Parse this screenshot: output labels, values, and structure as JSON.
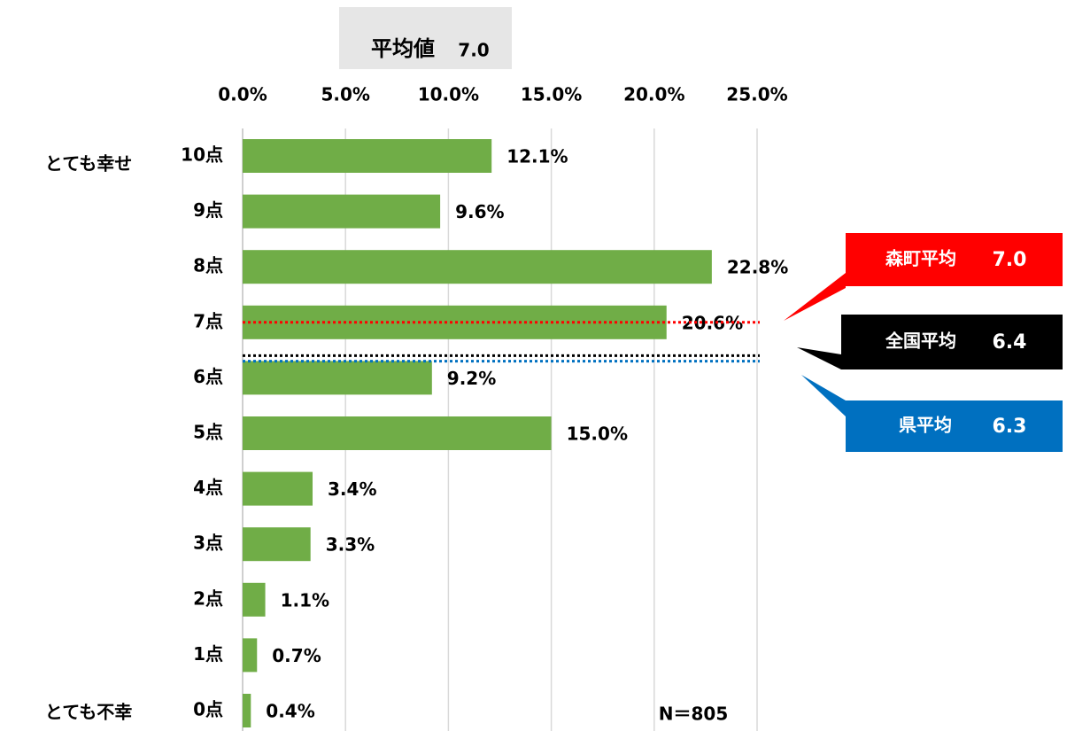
{
  "chart_data": {
    "type": "bar",
    "orientation": "horizontal",
    "title": "平均値",
    "title_value": 7.0,
    "title_value_label": "7.0",
    "categories": [
      "10点",
      "9点",
      "8点",
      "7点",
      "6点",
      "5点",
      "4点",
      "3点",
      "2点",
      "1点",
      "0点"
    ],
    "values": [
      12.1,
      9.6,
      22.8,
      20.6,
      9.2,
      15.0,
      3.4,
      3.3,
      1.1,
      0.7,
      0.4
    ],
    "value_labels": [
      "12.1%",
      "9.6%",
      "22.8%",
      "20.6%",
      "9.2%",
      "15.0%",
      "3.4%",
      "3.3%",
      "1.1%",
      "0.7%",
      "0.4%"
    ],
    "color": "#70ad47",
    "xlim": [
      0,
      25
    ],
    "xticks": [
      {
        "value": 0,
        "label": "0.0%"
      },
      {
        "value": 5,
        "label": "5.0%"
      },
      {
        "value": 10,
        "label": "10.0%"
      },
      {
        "value": 15,
        "label": "15.0%"
      },
      {
        "value": 20,
        "label": "20.0%"
      },
      {
        "value": 25,
        "label": "25.0%"
      }
    ],
    "grid": true,
    "top_label": "とても幸せ",
    "bottom_label": "とても不幸",
    "note": "N＝805",
    "averages": [
      {
        "name": "森町平均",
        "value": 7.0,
        "value_label": "7.0",
        "color": "#ff0000"
      },
      {
        "name": "全国平均",
        "value": 6.4,
        "value_label": "6.4",
        "color": "#000000"
      },
      {
        "name": "県平均",
        "value": 6.3,
        "value_label": "6.3",
        "color": "#0070c0"
      }
    ]
  }
}
